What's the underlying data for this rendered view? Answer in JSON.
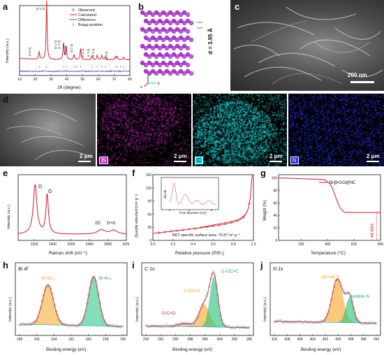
{
  "panels": {
    "a": {
      "label": "a",
      "xlabel": "2θ (degree)",
      "ylabel": "Intensity (a.u.)",
      "legend": [
        "Observed",
        "Calculated",
        "Difference",
        "Bragg position"
      ],
      "peaks": [
        "(0 0 3)",
        "(0 1 2)",
        "(0 1 4)",
        "(1 1 0)",
        "(0 1 5)",
        "(0 2 2)",
        "(0 2 4)",
        "(1 1 6)",
        "(1 2 2)",
        "(1 2 4)"
      ],
      "xticks": [
        "10",
        "20",
        "30",
        "40",
        "50",
        "60",
        "70",
        "80"
      ]
    },
    "b": {
      "label": "b",
      "d_text": "d = 3.95 Å",
      "axes": [
        "c",
        "a",
        "b"
      ]
    },
    "c": {
      "label": "c",
      "scale": "200 nm"
    },
    "d": {
      "label": "d",
      "scale": "2 μm",
      "tags": [
        "Bi",
        "C",
        "N"
      ]
    },
    "e": {
      "label": "e",
      "xlabel": "Raman shift (cm⁻¹)",
      "ylabel": "Intensity (a.u.)",
      "peaks": [
        "D",
        "G",
        "2D",
        "D+G"
      ],
      "xticks": [
        "1200",
        "1600",
        "2000",
        "2400",
        "2800",
        "3200"
      ]
    },
    "f": {
      "label": "f",
      "xlabel": "Relative pressure (P/P₀)",
      "ylabel": "Quantity adsorbed (cm³ g⁻¹)",
      "yticks": [
        "0",
        "30",
        "60",
        "90",
        "120",
        "150"
      ],
      "xticks": [
        "0.0",
        "0.2",
        "0.4",
        "0.6",
        "0.8",
        "1.0"
      ],
      "bet": "BET specific surface area: 70.87 m² g⁻¹",
      "inset_xlabel": "Pore diameter (nm)",
      "inset_ylabel": "dVₚ/dₚ",
      "inset_xticks": [
        "0",
        "4",
        "8"
      ]
    },
    "g": {
      "label": "g",
      "xlabel": "Temperature (°C)",
      "ylabel": "Weight (%)",
      "legend": "Bi@rGO@NC",
      "annotation": "44.69%",
      "yticks": [
        "0",
        "20",
        "40",
        "60",
        "80",
        "100"
      ],
      "xticks": [
        "200",
        "400",
        "600",
        "800"
      ]
    },
    "h": {
      "label": "h",
      "title": "Bi 4f",
      "xlabel": "Binding energy (eV)",
      "ylabel": "Intensity (a.u.)",
      "peaks": [
        "Bi 4f₅/₂",
        "Bi 4f₇/₂"
      ],
      "xticks": [
        "168",
        "166",
        "164",
        "162",
        "160",
        "158",
        "156"
      ]
    },
    "i": {
      "label": "i",
      "title": "C 1s",
      "xlabel": "Binding energy (eV)",
      "ylabel": "Intensity (a.u.)",
      "peaks": [
        "O-C=O",
        "C-O/C-N",
        "C-C/C=C"
      ],
      "xticks": [
        "294",
        "292",
        "290",
        "288",
        "286",
        "284",
        "282",
        "280"
      ]
    },
    "j": {
      "label": "j",
      "title": "N 1s",
      "xlabel": "Binding energy (eV)",
      "ylabel": "Intensity (a.u.)",
      "peaks": [
        "pyrrolic N",
        "pyridinic N"
      ],
      "xticks": [
        "410",
        "408",
        "406",
        "404",
        "402",
        "400",
        "398",
        "396",
        "394"
      ]
    }
  },
  "colors": {
    "red": "#d8141f",
    "pink": "#cc22cc",
    "cyan": "#00e0e0",
    "blue": "#1a2ae0",
    "orange": "#f6a521",
    "green": "#1fc27c"
  },
  "chart_data": [
    {
      "type": "line",
      "panel": "a",
      "title": "",
      "xlabel": "2θ (degree)",
      "ylabel": "Intensity (a.u.)",
      "series": [
        {
          "name": "Calculated",
          "x": [
            10,
            20,
            22.5,
            27.2,
            32,
            37.9,
            39.6,
            44.6,
            46,
            48.7,
            56,
            59.3,
            62.2,
            64.5,
            70,
            72,
            80
          ],
          "y": [
            0.18,
            0.2,
            0.35,
            1.0,
            0.2,
            0.55,
            0.5,
            0.28,
            0.3,
            0.42,
            0.25,
            0.28,
            0.26,
            0.27,
            0.24,
            0.26,
            0.2
          ]
        }
      ],
      "xlim": [
        10,
        80
      ]
    },
    {
      "type": "line",
      "panel": "e",
      "title": "",
      "xlabel": "Raman shift (cm⁻¹)",
      "ylabel": "Intensity (a.u.)",
      "series": [
        {
          "name": "",
          "x": [
            1000,
            1250,
            1340,
            1450,
            1590,
            1700,
            2000,
            2690,
            2940,
            3200
          ],
          "y": [
            0.1,
            0.3,
            0.9,
            0.4,
            0.75,
            0.2,
            0.1,
            0.18,
            0.17,
            0.1
          ]
        }
      ],
      "xlim": [
        1000,
        3200
      ]
    },
    {
      "type": "line",
      "panel": "f",
      "title": "",
      "xlabel": "Relative pressure (P/P₀)",
      "ylabel": "Quantity adsorbed (cm³ g⁻¹)",
      "series": [
        {
          "name": "",
          "x": [
            0,
            0.05,
            0.2,
            0.4,
            0.6,
            0.8,
            0.9,
            0.95,
            0.98,
            1.0
          ],
          "y": [
            5,
            20,
            25,
            30,
            35,
            42,
            50,
            60,
            90,
            150
          ]
        }
      ],
      "xlim": [
        0,
        1
      ],
      "ylim": [
        0,
        150
      ]
    },
    {
      "type": "line",
      "panel": "g",
      "title": "",
      "xlabel": "Temperature (°C)",
      "ylabel": "Weight (%)",
      "series": [
        {
          "name": "Bi@rGO@NC",
          "x": [
            30,
            200,
            350,
            430,
            480,
            520,
            600,
            800
          ],
          "y": [
            100,
            98,
            95,
            85,
            65,
            47,
            45,
            44.69
          ]
        }
      ],
      "xlim": [
        30,
        800
      ],
      "ylim": [
        0,
        105
      ]
    },
    {
      "type": "line",
      "panel": "h",
      "title": "Bi 4f",
      "xlabel": "Binding energy (eV)",
      "ylabel": "Intensity (a.u.)",
      "series": [
        {
          "name": "",
          "x": [
            168,
            166,
            164.7,
            163,
            161,
            159.4,
            158,
            156
          ],
          "y": [
            0.1,
            0.3,
            0.8,
            0.2,
            0.25,
            0.95,
            0.2,
            0.1
          ]
        }
      ],
      "xlim": [
        168,
        156
      ]
    },
    {
      "type": "line",
      "panel": "i",
      "title": "C 1s",
      "xlabel": "Binding energy (eV)",
      "ylabel": "Intensity (a.u.)",
      "series": [
        {
          "name": "",
          "x": [
            294,
            290,
            288.8,
            286.2,
            284.8,
            283,
            280
          ],
          "y": [
            0.05,
            0.08,
            0.12,
            0.45,
            1.0,
            0.1,
            0.05
          ]
        }
      ],
      "xlim": [
        294,
        280
      ]
    },
    {
      "type": "line",
      "panel": "j",
      "title": "N 1s",
      "xlabel": "Binding energy (eV)",
      "ylabel": "Intensity (a.u.)",
      "series": [
        {
          "name": "",
          "x": [
            410,
            404,
            401,
            400,
            398.4,
            396,
            394
          ],
          "y": [
            0.1,
            0.15,
            0.6,
            0.95,
            0.7,
            0.15,
            0.1
          ]
        }
      ],
      "xlim": [
        410,
        394
      ]
    }
  ]
}
